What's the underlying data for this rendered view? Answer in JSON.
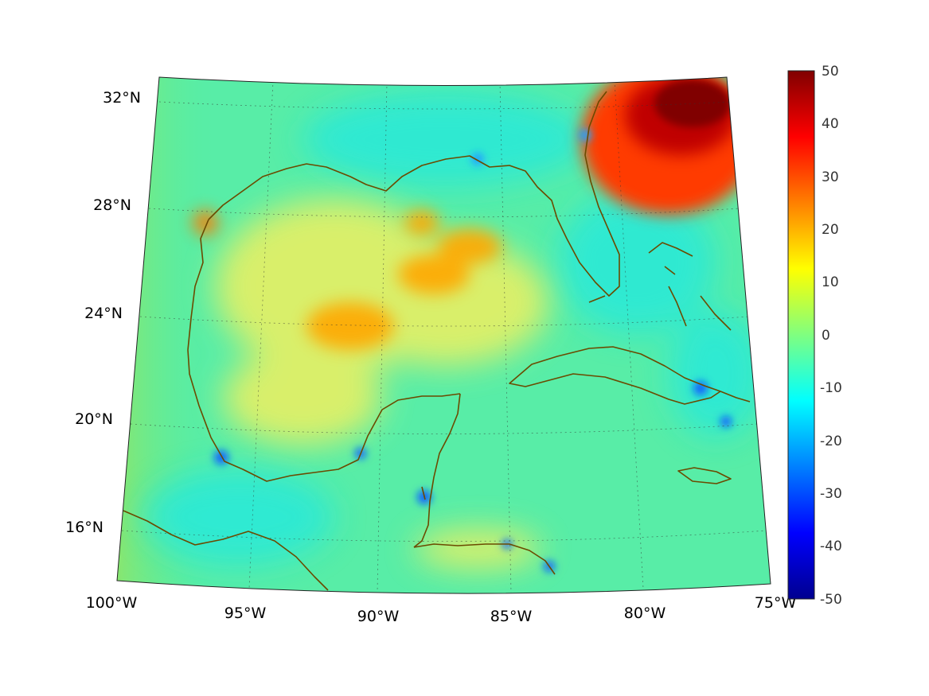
{
  "map": {
    "lon_labels": [
      "100°W",
      "95°W",
      "90°W",
      "85°W",
      "80°W",
      "75°W"
    ],
    "lat_labels": [
      "32°N",
      "28°N",
      "24°N",
      "20°N",
      "16°N"
    ],
    "extent": {
      "lon_min": -100,
      "lon_max": -75,
      "lat_min": 14,
      "lat_max": 33
    },
    "projection": "conic",
    "coastline_color": "#6b4a00",
    "grid": "dotted"
  },
  "colorbar": {
    "ticks": [
      "50",
      "40",
      "30",
      "20",
      "10",
      "0",
      "-10",
      "-20",
      "-30",
      "-40",
      "-50"
    ],
    "min": -50,
    "max": 50,
    "colormap": "jet"
  },
  "field_features": [
    {
      "region": "Atlantic off Georgia/South Carolina",
      "value": 50
    },
    {
      "region": "Central Gulf of Mexico",
      "value": 22
    },
    {
      "region": "Western Gulf",
      "value": 18
    },
    {
      "region": "Northwest Bahamas",
      "value": -20
    }
  ]
}
